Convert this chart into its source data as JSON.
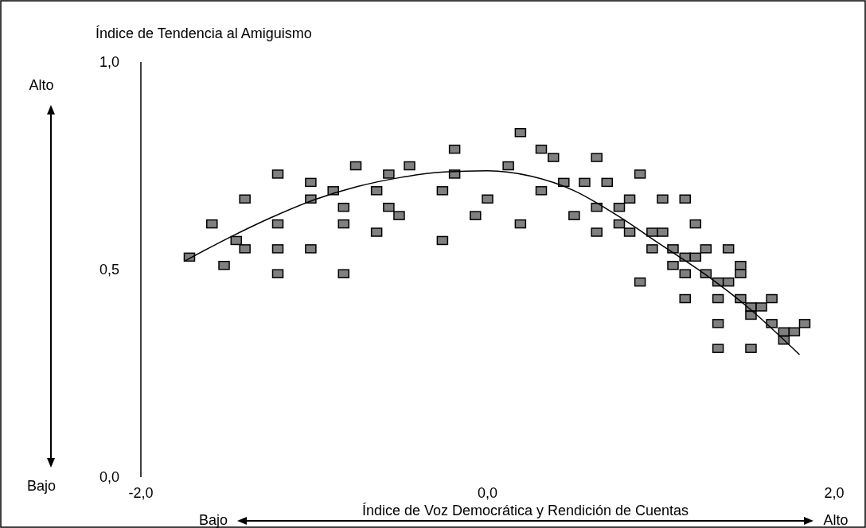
{
  "chart_data": {
    "type": "scatter",
    "ylabel": "Índice de Tendencia al Amiguismo",
    "xlabel": "Índice de Voz Democrática y Rendición de Cuentas",
    "annotations": [
      "Alto",
      "Bajo",
      "Bajo",
      "Alto"
    ],
    "xlim": [
      -2,
      2
    ],
    "xticks": [
      {
        "value": -2,
        "label": "-2,0"
      },
      {
        "value": 0,
        "label": "0,0"
      },
      {
        "value": 2,
        "label": "2,0"
      }
    ],
    "ylim": [
      0,
      1
    ],
    "yticks": [
      {
        "value": 0,
        "label": "0,0"
      },
      {
        "value": 0.5,
        "label": "0,5"
      },
      {
        "value": 1,
        "label": "1,0"
      }
    ],
    "grid": false,
    "marker": "square",
    "series": [
      {
        "type": "scatter",
        "color": "#808080",
        "x": [
          -1.72,
          -1.59,
          -1.52,
          -1.45,
          -1.4,
          -1.4,
          -1.21,
          -1.21,
          -1.21,
          -1.21,
          -1.02,
          -1.02,
          -1.02,
          -0.89,
          -0.83,
          -0.83,
          -0.83,
          -0.76,
          -0.64,
          -0.64,
          -0.57,
          -0.57,
          -0.51,
          -0.45,
          -0.26,
          -0.26,
          -0.19,
          -0.19,
          -0.07,
          0.0,
          0.19,
          0.31,
          0.38,
          0.12,
          0.63,
          0.88,
          0.44,
          0.56,
          0.69,
          0.31,
          0.82,
          1.01,
          1.14,
          0.63,
          0.76,
          0.5,
          0.19,
          0.76,
          1.2,
          0.63,
          0.82,
          0.95,
          1.01,
          0.95,
          1.07,
          1.26,
          1.39,
          1.14,
          1.2,
          1.07,
          1.46,
          1.14,
          1.26,
          1.46,
          0.88,
          1.33,
          1.39,
          1.14,
          1.33,
          1.46,
          1.64,
          1.52,
          1.58,
          1.52,
          1.33,
          1.64,
          1.83,
          1.71,
          1.77,
          1.71,
          1.33,
          1.52
        ],
        "values": [
          0.53,
          0.61,
          0.51,
          0.57,
          0.67,
          0.55,
          0.73,
          0.61,
          0.55,
          0.49,
          0.71,
          0.67,
          0.55,
          0.69,
          0.65,
          0.61,
          0.49,
          0.75,
          0.69,
          0.59,
          0.73,
          0.65,
          0.63,
          0.75,
          0.69,
          0.57,
          0.79,
          0.73,
          0.63,
          0.67,
          0.83,
          0.79,
          0.77,
          0.75,
          0.77,
          0.73,
          0.71,
          0.71,
          0.71,
          0.69,
          0.67,
          0.67,
          0.67,
          0.65,
          0.65,
          0.63,
          0.61,
          0.61,
          0.61,
          0.59,
          0.59,
          0.59,
          0.59,
          0.55,
          0.55,
          0.55,
          0.55,
          0.53,
          0.53,
          0.51,
          0.51,
          0.49,
          0.49,
          0.49,
          0.47,
          0.47,
          0.47,
          0.43,
          0.43,
          0.43,
          0.43,
          0.41,
          0.41,
          0.39,
          0.37,
          0.37,
          0.37,
          0.35,
          0.35,
          0.33,
          0.31,
          0.31
        ]
      },
      {
        "type": "line",
        "color": "#000000",
        "marker": "none",
        "line_style": "solid",
        "x": [
          -1.75,
          -1.5,
          -1.25,
          -1.0,
          -0.75,
          -0.5,
          -0.25,
          0,
          0.25,
          0.5,
          0.75,
          1.0,
          1.25,
          1.5,
          1.8
        ],
        "values": [
          0.52,
          0.575,
          0.625,
          0.668,
          0.7,
          0.722,
          0.735,
          0.738,
          0.725,
          0.69,
          0.63,
          0.56,
          0.49,
          0.41,
          0.295
        ]
      }
    ]
  }
}
